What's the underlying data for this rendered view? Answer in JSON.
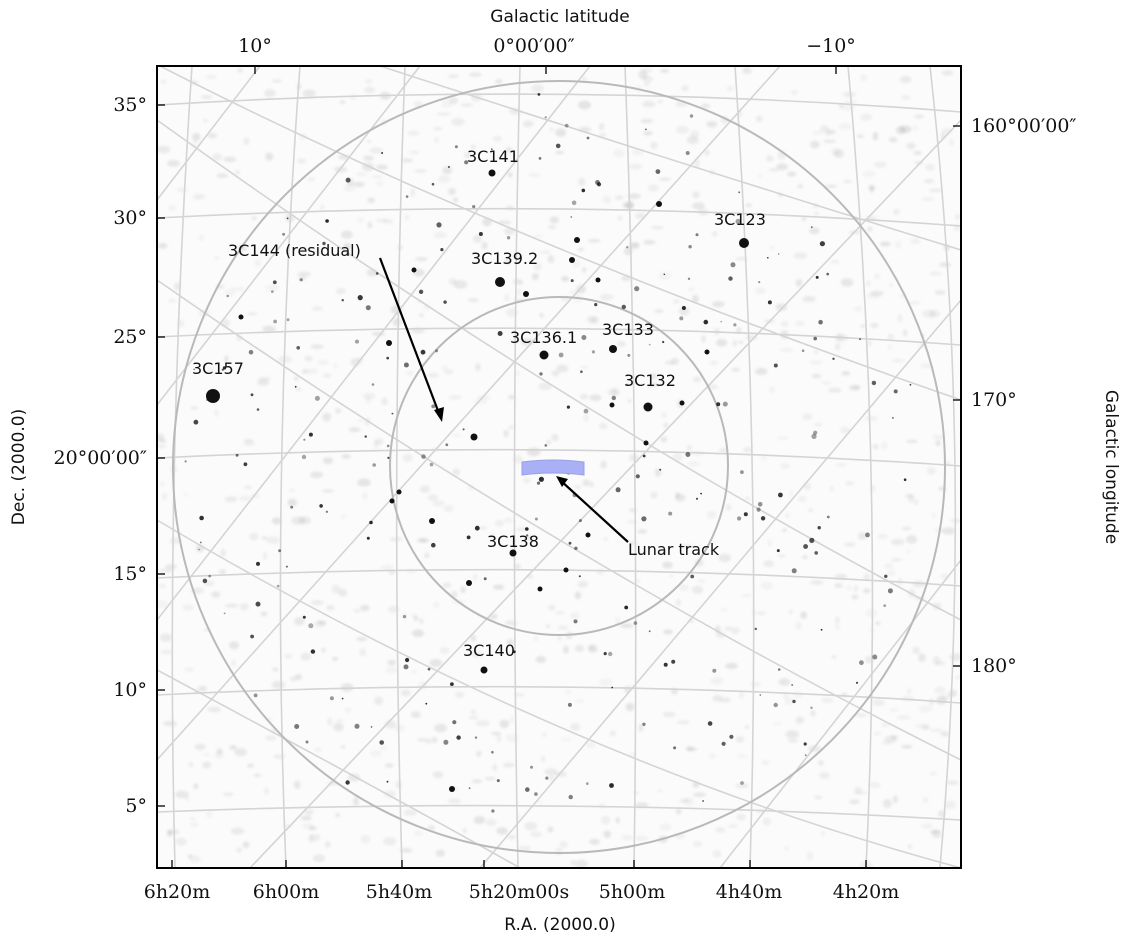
{
  "axes": {
    "top_label": "Galactic latitude",
    "bottom_label": "R.A. (2000.0)",
    "left_label": "Dec. (2000.0)",
    "right_label": "Galactic longitude"
  },
  "ticks": {
    "top": [
      "10°",
      "0°00′00″",
      "−10°"
    ],
    "bottom": [
      "6h20m",
      "6h00m",
      "5h40m",
      "5h20m00s",
      "5h00m",
      "4h40m",
      "4h20m"
    ],
    "left": [
      "35°",
      "30°",
      "25°",
      "20°00′00″",
      "15°",
      "10°",
      "5°"
    ],
    "right": [
      "160°00′00″",
      "170°",
      "180°"
    ]
  },
  "sources": [
    {
      "name": "3C141"
    },
    {
      "name": "3C123"
    },
    {
      "name": "3C144 (residual)"
    },
    {
      "name": "3C139.2"
    },
    {
      "name": "3C136.1"
    },
    {
      "name": "3C133"
    },
    {
      "name": "3C157"
    },
    {
      "name": "3C132"
    },
    {
      "name": "3C138"
    },
    {
      "name": "3C140"
    },
    {
      "name": "Lunar track"
    }
  ],
  "colors": {
    "grid": "#d4d4d4",
    "circle": "#b9b9b9",
    "lunar_track": "#aab0f5",
    "frame": "#000000"
  }
}
